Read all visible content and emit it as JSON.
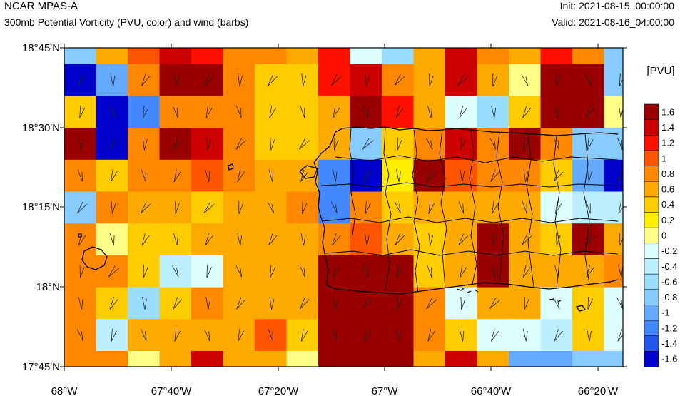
{
  "header": {
    "title": "NCAR MPAS-A",
    "subtitle": "300mb Potential Vorticity (PVU, color) and wind (barbs)",
    "init": "Init: 2021-08-15_00:00:00",
    "valid": "Valid: 2021-08-16_04:00:00"
  },
  "colorbar": {
    "unit_label": "[PVU]",
    "tick_labels": [
      "1.6",
      "1.4",
      "1.2",
      "1",
      "0.8",
      "0.6",
      "0.4",
      "0.2",
      "0",
      "-0.2",
      "-0.4",
      "-0.6",
      "-0.8",
      "-1",
      "-1.2",
      "-1.4",
      "-1.6"
    ],
    "colors": [
      "#990000",
      "#cc0000",
      "#ff1100",
      "#ff5500",
      "#ff8800",
      "#ffaa00",
      "#ffcc00",
      "#ffee00",
      "#ffff88",
      "#ddffff",
      "#bbeeff",
      "#99ddff",
      "#88ccff",
      "#66aaff",
      "#4488ff",
      "#2255ee",
      "#0000cc"
    ]
  },
  "chart_data": {
    "type": "heatmap",
    "xlabel": "",
    "ylabel": "",
    "x_tick_labels": [
      "68°W",
      "67°40'W",
      "67°20'W",
      "67°W",
      "66°40'W",
      "66°20'W"
    ],
    "y_tick_labels": [
      "18°45'N",
      "18°30'N",
      "18°15'N",
      "18°N",
      "17°45'N"
    ],
    "x_range_deg": [
      -68.0,
      -66.2
    ],
    "y_range_deg": [
      17.75,
      18.75
    ],
    "grid_shape": [
      10,
      18
    ],
    "pv_values": [
      [
        -0.9,
        0.5,
        0.9,
        1.3,
        1.2,
        0.7,
        0.7,
        0.5,
        1.2,
        -0.2,
        -0.7,
        0.6,
        1.3,
        0.7,
        0.5,
        1.1,
        0.7,
        -0.8
      ],
      [
        -1.7,
        -1.0,
        0.7,
        1.7,
        1.5,
        0.7,
        0.4,
        0.4,
        1.1,
        1.3,
        0.7,
        0.5,
        1.3,
        0.5,
        -0.1,
        1.5,
        1.5,
        -0.8
      ],
      [
        0.3,
        -1.7,
        -1.3,
        0.7,
        0.7,
        0.7,
        0.4,
        0.3,
        0.5,
        1.7,
        1.1,
        0.6,
        -0.2,
        -0.7,
        0.3,
        1.5,
        1.5,
        -0.1
      ],
      [
        1.5,
        -1.7,
        0.7,
        1.7,
        1.3,
        0.7,
        0.4,
        0.3,
        0.5,
        -0.8,
        0.3,
        0.8,
        1.3,
        0.7,
        1.7,
        0.7,
        -0.8,
        -0.8
      ],
      [
        0.7,
        0.3,
        0.7,
        0.7,
        0.9,
        0.7,
        0.5,
        0.5,
        -1.2,
        -1.7,
        0.2,
        1.5,
        0.9,
        0.7,
        0.7,
        0.3,
        -1.1,
        -1.7
      ],
      [
        -0.8,
        0.7,
        0.5,
        0.5,
        0.3,
        0.5,
        0.5,
        0.7,
        -1.2,
        0.7,
        0.3,
        0.5,
        0.5,
        0.5,
        0.5,
        -0.3,
        -0.5,
        -0.4
      ],
      [
        0.7,
        -0.1,
        0.3,
        0.3,
        0.5,
        0.5,
        0.5,
        0.5,
        0.7,
        0.9,
        0.5,
        0.3,
        0.5,
        1.7,
        0.5,
        0.3,
        1.5,
        0.5
      ],
      [
        0.7,
        0.7,
        0.3,
        -0.4,
        -0.2,
        0.5,
        0.5,
        0.5,
        1.5,
        1.7,
        1.7,
        0.4,
        0.5,
        1.7,
        0.5,
        0.5,
        0.5,
        0.7
      ],
      [
        0.7,
        0.3,
        -0.6,
        0.3,
        0.7,
        0.5,
        0.5,
        0.5,
        1.5,
        1.7,
        1.7,
        0.7,
        -0.2,
        0.5,
        0.5,
        -0.3,
        0.3,
        -0.2
      ],
      [
        0.7,
        -0.5,
        0.5,
        0.5,
        0.5,
        0.5,
        0.9,
        0.3,
        1.5,
        1.7,
        1.7,
        0.7,
        0.3,
        -0.2,
        -0.2,
        -0.4,
        0.3,
        -0.3
      ]
    ],
    "bottom_strip_values": [
      0.7,
      0.7,
      -0.1,
      0.5,
      1.3,
      0.5,
      0.5,
      -0.1,
      1.5,
      1.5,
      1.7,
      0.5,
      1.3,
      0.5,
      -1.0,
      -1.0,
      -0.9,
      -0.8
    ]
  }
}
